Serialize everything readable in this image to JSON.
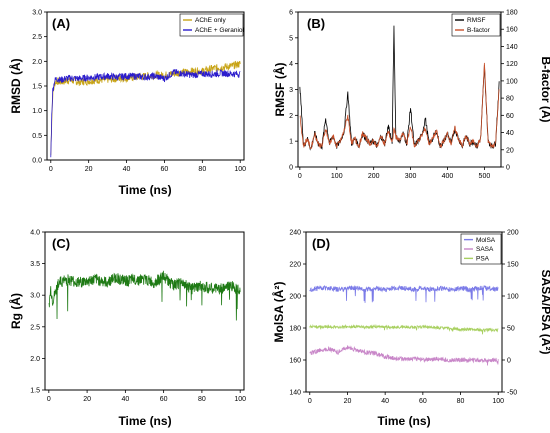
{
  "chart_data": [
    {
      "panel": "(A)",
      "type": "line",
      "xlabel": "Time (ns)",
      "ylabel": "RMSD (Å)",
      "xlim": [
        -2,
        102
      ],
      "ylim": [
        0,
        3.0
      ],
      "xticks": [
        0,
        20,
        40,
        60,
        80,
        100
      ],
      "yticks": [
        0.0,
        0.5,
        1.0,
        1.5,
        2.0,
        2.5,
        3.0
      ],
      "legend_position": "top-right",
      "grid": false,
      "series": [
        {
          "name": "AChE only",
          "color": "#c8a416",
          "x": [
            0,
            0.5,
            1,
            2,
            3,
            5,
            8,
            10,
            15,
            20,
            25,
            30,
            35,
            40,
            45,
            50,
            55,
            60,
            65,
            70,
            75,
            80,
            85,
            90,
            95,
            100
          ],
          "y": [
            0.1,
            0.8,
            1.3,
            1.55,
            1.6,
            1.58,
            1.6,
            1.62,
            1.58,
            1.6,
            1.62,
            1.63,
            1.65,
            1.66,
            1.68,
            1.7,
            1.72,
            1.72,
            1.75,
            1.78,
            1.8,
            1.8,
            1.85,
            1.88,
            1.9,
            1.95
          ]
        },
        {
          "name": "AChE + Geraniol",
          "color": "#2b1ccc",
          "x": [
            0,
            0.5,
            1,
            2,
            3,
            5,
            8,
            10,
            15,
            20,
            25,
            30,
            35,
            40,
            45,
            50,
            55,
            60,
            65,
            70,
            75,
            80,
            85,
            90,
            95,
            100
          ],
          "y": [
            0.05,
            0.9,
            1.4,
            1.6,
            1.65,
            1.62,
            1.65,
            1.66,
            1.65,
            1.67,
            1.68,
            1.7,
            1.68,
            1.7,
            1.7,
            1.68,
            1.7,
            1.65,
            1.78,
            1.75,
            1.72,
            1.75,
            1.74,
            1.76,
            1.75,
            1.74
          ]
        }
      ]
    },
    {
      "panel": "(B)",
      "type": "line",
      "xlabel": "",
      "ylabel": "RMSF (Å)",
      "y2label": "B-factor (Å)",
      "xlim": [
        -5,
        545
      ],
      "ylim": [
        0,
        6
      ],
      "y2lim": [
        0,
        180
      ],
      "xticks": [
        0,
        100,
        200,
        300,
        400,
        500
      ],
      "yticks": [
        0,
        1,
        2,
        3,
        4,
        5,
        6
      ],
      "y2ticks": [
        0,
        20,
        40,
        60,
        80,
        100,
        120,
        140,
        160,
        180
      ],
      "legend_position": "top-right",
      "grid": false,
      "series": [
        {
          "name": "RMSF",
          "color": "#000000",
          "axis": "left",
          "x": [
            0,
            10,
            20,
            30,
            40,
            50,
            60,
            70,
            80,
            90,
            100,
            110,
            120,
            130,
            140,
            150,
            160,
            170,
            180,
            190,
            200,
            210,
            220,
            230,
            240,
            250,
            255,
            260,
            270,
            280,
            290,
            300,
            310,
            320,
            330,
            340,
            350,
            360,
            370,
            380,
            390,
            400,
            410,
            420,
            430,
            440,
            450,
            460,
            470,
            480,
            490,
            500,
            510,
            520,
            530,
            540
          ],
          "y": [
            3.2,
            0.8,
            1.1,
            0.7,
            1.3,
            0.9,
            0.8,
            1.9,
            0.9,
            1.2,
            0.8,
            1.0,
            1.4,
            2.9,
            0.9,
            1.1,
            0.8,
            1.3,
            1.1,
            0.9,
            1.0,
            0.8,
            1.2,
            0.9,
            1.6,
            0.9,
            5.4,
            1.2,
            1.0,
            1.3,
            0.9,
            2.3,
            0.8,
            1.0,
            1.2,
            1.9,
            0.9,
            1.1,
            1.4,
            0.8,
            1.0,
            1.3,
            0.9,
            1.5,
            1.1,
            0.8,
            1.2,
            0.9,
            1.0,
            0.8,
            1.1,
            3.9,
            1.0,
            0.8,
            0.9,
            3.2
          ]
        },
        {
          "name": "B-factor",
          "color": "#c8502a",
          "axis": "right",
          "x": [
            0,
            10,
            20,
            30,
            40,
            50,
            60,
            70,
            80,
            90,
            100,
            110,
            120,
            130,
            140,
            150,
            160,
            170,
            180,
            190,
            200,
            210,
            220,
            230,
            240,
            250,
            255,
            260,
            270,
            280,
            290,
            300,
            310,
            320,
            330,
            340,
            350,
            360,
            370,
            380,
            390,
            400,
            410,
            420,
            430,
            440,
            450,
            460,
            470,
            480,
            490,
            500,
            510,
            520,
            530,
            540
          ],
          "y": [
            60,
            24,
            33,
            21,
            39,
            27,
            24,
            45,
            27,
            36,
            24,
            30,
            42,
            60,
            27,
            33,
            24,
            39,
            33,
            27,
            30,
            24,
            36,
            27,
            42,
            27,
            45,
            36,
            30,
            39,
            27,
            48,
            24,
            30,
            36,
            45,
            27,
            33,
            42,
            24,
            30,
            39,
            27,
            45,
            33,
            24,
            36,
            27,
            30,
            24,
            33,
            120,
            30,
            24,
            27,
            90
          ]
        }
      ]
    },
    {
      "panel": "(C)",
      "type": "line",
      "xlabel": "Time (ns)",
      "ylabel": "Rg (Å)",
      "xlim": [
        -2,
        102
      ],
      "ylim": [
        1.5,
        4.0
      ],
      "xticks": [
        0,
        20,
        40,
        60,
        80,
        100
      ],
      "yticks": [
        1.5,
        2.0,
        2.5,
        3.0,
        3.5,
        4.0
      ],
      "legend_position": "none",
      "grid": false,
      "series": [
        {
          "name": "",
          "color": "#1e7a14",
          "x": [
            0,
            1,
            2,
            5,
            10,
            15,
            20,
            25,
            30,
            35,
            40,
            45,
            50,
            55,
            60,
            65,
            70,
            75,
            80,
            85,
            90,
            95,
            100
          ],
          "y": [
            2.8,
            3.1,
            2.9,
            3.2,
            3.25,
            3.2,
            3.22,
            3.25,
            3.2,
            3.28,
            3.22,
            3.25,
            3.25,
            3.2,
            3.3,
            3.15,
            3.2,
            3.1,
            3.15,
            3.1,
            3.1,
            3.15,
            3.1
          ]
        }
      ]
    },
    {
      "panel": "(D)",
      "type": "line",
      "xlabel": "Time (ns)",
      "ylabel": "MolSA (Å²)",
      "y2label": "SASA/PSA (Å²)",
      "xlim": [
        -2,
        102
      ],
      "ylim": [
        140,
        240
      ],
      "y2lim": [
        -50,
        200
      ],
      "xticks": [
        0,
        20,
        40,
        60,
        80,
        100
      ],
      "yticks": [
        140,
        160,
        180,
        200,
        220,
        240
      ],
      "y2ticks": [
        -50,
        0,
        50,
        100,
        150,
        200
      ],
      "legend_position": "top-right",
      "grid": false,
      "series": [
        {
          "name": "MolSA",
          "color": "#7b7be8",
          "axis": "left",
          "x": [
            0,
            5,
            10,
            15,
            20,
            25,
            30,
            35,
            40,
            45,
            50,
            55,
            60,
            65,
            70,
            75,
            80,
            85,
            90,
            95,
            100
          ],
          "y": [
            204,
            205,
            205,
            204,
            205,
            205,
            204,
            205,
            204,
            205,
            205,
            204,
            205,
            204,
            205,
            204,
            205,
            204,
            205,
            205,
            204
          ]
        },
        {
          "name": "SASA",
          "color": "#c886c8",
          "axis": "right",
          "x": [
            0,
            5,
            10,
            15,
            20,
            25,
            30,
            35,
            40,
            45,
            50,
            55,
            60,
            65,
            70,
            75,
            80,
            85,
            90,
            95,
            100
          ],
          "y": [
            10,
            15,
            18,
            12,
            20,
            15,
            12,
            10,
            5,
            3,
            2,
            2,
            1,
            1,
            1,
            0,
            0,
            0,
            0,
            0,
            0
          ]
        },
        {
          "name": "PSA",
          "color": "#a8d060",
          "axis": "right",
          "x": [
            0,
            5,
            10,
            15,
            20,
            25,
            30,
            35,
            40,
            45,
            50,
            55,
            60,
            65,
            70,
            75,
            80,
            85,
            90,
            95,
            100
          ],
          "y": [
            52,
            52,
            52,
            51,
            52,
            52,
            51,
            52,
            52,
            51,
            52,
            51,
            52,
            51,
            50,
            49,
            48,
            48,
            47,
            47,
            47
          ]
        }
      ]
    }
  ]
}
